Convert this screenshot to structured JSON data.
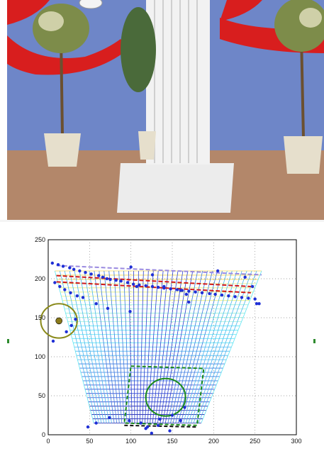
{
  "photo": {
    "description_icon": "stage-scene-icon",
    "colors": {
      "backdrop": "#6e86c8",
      "drape": "#d81e1e",
      "floor": "#b3876a",
      "column": "#f2f2f2",
      "pot": "#e6dfcc",
      "foliage": "#7d8c4a"
    }
  },
  "chart_data": {
    "type": "scatter",
    "title": "",
    "xlabel": "",
    "ylabel": "",
    "xlim": [
      0,
      300
    ],
    "ylim": [
      0,
      250
    ],
    "xticks": [
      0,
      50,
      100,
      150,
      200,
      250,
      300
    ],
    "yticks": [
      0,
      50,
      100,
      150,
      200,
      250
    ],
    "grid": true,
    "points": {
      "color": "#1f2fd6",
      "x": [
        5,
        12,
        18,
        26,
        31,
        38,
        45,
        52,
        61,
        66,
        71,
        75,
        82,
        88,
        96,
        103,
        110,
        118,
        126,
        133,
        140,
        148,
        156,
        162,
        170,
        178,
        186,
        195,
        202,
        210,
        218,
        226,
        234,
        242,
        250,
        255,
        8,
        14,
        20,
        27,
        35,
        42,
        58,
        72,
        99,
        107,
        126,
        160,
        167,
        205,
        238,
        247,
        252,
        6,
        22,
        28,
        33,
        170,
        140,
        100,
        120,
        135,
        150,
        160,
        165,
        147,
        133,
        125,
        118,
        112,
        98,
        74,
        58,
        48
      ],
      "y": [
        220,
        218,
        216,
        214,
        212,
        210,
        208,
        206,
        204,
        202,
        200,
        199,
        198,
        197,
        195,
        193,
        192,
        191,
        190,
        189,
        188,
        187,
        186,
        185,
        184,
        183,
        182,
        181,
        180,
        179,
        178,
        177,
        176,
        175,
        174,
        168,
        195,
        190,
        186,
        182,
        178,
        176,
        168,
        162,
        158,
        190,
        205,
        185,
        180,
        210,
        202,
        190,
        168,
        120,
        132,
        140,
        148,
        170,
        190,
        215,
        10,
        20,
        25,
        18,
        35,
        5,
        12,
        2,
        8,
        15,
        18,
        22,
        15,
        10
      ],
      "highlight": {
        "x": 13,
        "y": 146,
        "color": "#8a7a1a"
      }
    },
    "mesh": {
      "top_y": 210,
      "bottom_y": 15,
      "left_top_x": 8,
      "right_top_x": 258,
      "left_bottom_x": 55,
      "right_bottom_x": 185,
      "colors": [
        "#1a1aa8",
        "#2a40d0",
        "#3a7ae0",
        "#4ab6f0",
        "#5ee4f4",
        "#9af0d8",
        "#e6f07a",
        "#f4d850"
      ]
    },
    "lines": [
      {
        "color": "#d01818",
        "dash": "6,3",
        "x": [
          10,
          245
        ],
        "y": [
          204,
          190
        ]
      },
      {
        "color": "#d01818",
        "dash": "6,3",
        "x": [
          10,
          245
        ],
        "y": [
          196,
          182
        ]
      },
      {
        "color": "#9a8ae0",
        "dash": "6,3",
        "x": [
          10,
          258
        ],
        "y": [
          217,
          205
        ]
      }
    ],
    "circles": [
      {
        "color": "#8a8a1a",
        "cx": 13,
        "cy": 146,
        "r": 22
      },
      {
        "color": "#1a8a1a",
        "cx": 142,
        "cy": 48,
        "r": 24
      }
    ],
    "polygons": [
      {
        "color": "#1a8a1a",
        "dash": "5,3",
        "x": [
          100,
          188,
          180,
          92
        ],
        "y": [
          88,
          85,
          12,
          15
        ]
      },
      {
        "color": "#111111",
        "dash": "5,3",
        "x": [
          92,
          180
        ],
        "y": [
          12,
          10
        ]
      }
    ]
  }
}
